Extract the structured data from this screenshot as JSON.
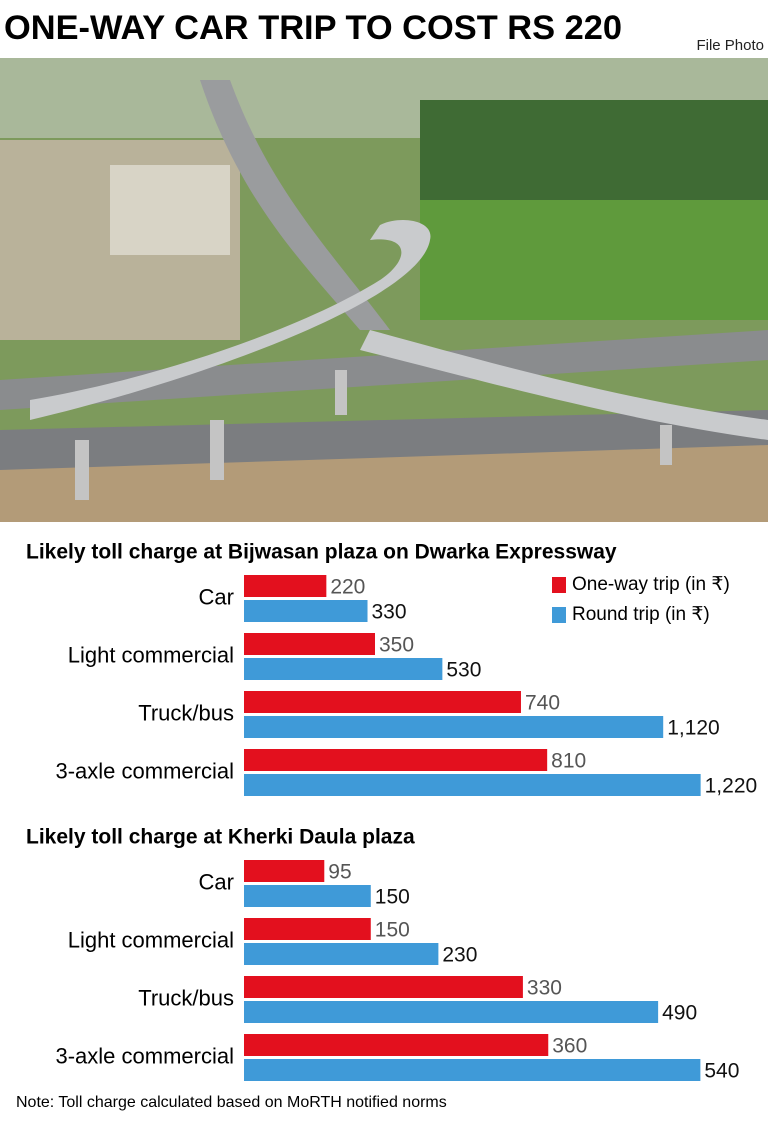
{
  "header": {
    "title": "ONE-WAY CAR TRIP TO COST RS 220",
    "credit": "File Photo"
  },
  "chart_data": [
    {
      "type": "bar",
      "orientation": "horizontal",
      "title": "Likely toll charge at Bijwasan plaza on Dwarka Expressway",
      "categories": [
        "Car",
        "Light commercial",
        "Truck/bus",
        "3-axle commercial"
      ],
      "series": [
        {
          "name": "One-way trip (in ₹)",
          "color": "#e3101e",
          "values": [
            220,
            350,
            740,
            810
          ]
        },
        {
          "name": "Round trip (in ₹)",
          "color": "#3f9ad8",
          "values": [
            330,
            530,
            1120,
            1220
          ],
          "value_labels": [
            "330",
            "530",
            "1,120",
            "1,220"
          ]
        }
      ],
      "xlim": [
        0,
        1400
      ],
      "legend": "top-right"
    },
    {
      "type": "bar",
      "orientation": "horizontal",
      "title": "Likely toll charge at Kherki Daula plaza",
      "categories": [
        "Car",
        "Light commercial",
        "Truck/bus",
        "3-axle commercial"
      ],
      "series": [
        {
          "color": "#e3101e",
          "values": [
            95,
            150,
            330,
            360
          ]
        },
        {
          "color": "#3f9ad8",
          "values": [
            150,
            230,
            490,
            540
          ]
        }
      ],
      "xlim": [
        0,
        620
      ]
    }
  ],
  "note": "Note: Toll charge calculated based on MoRTH notified norms"
}
